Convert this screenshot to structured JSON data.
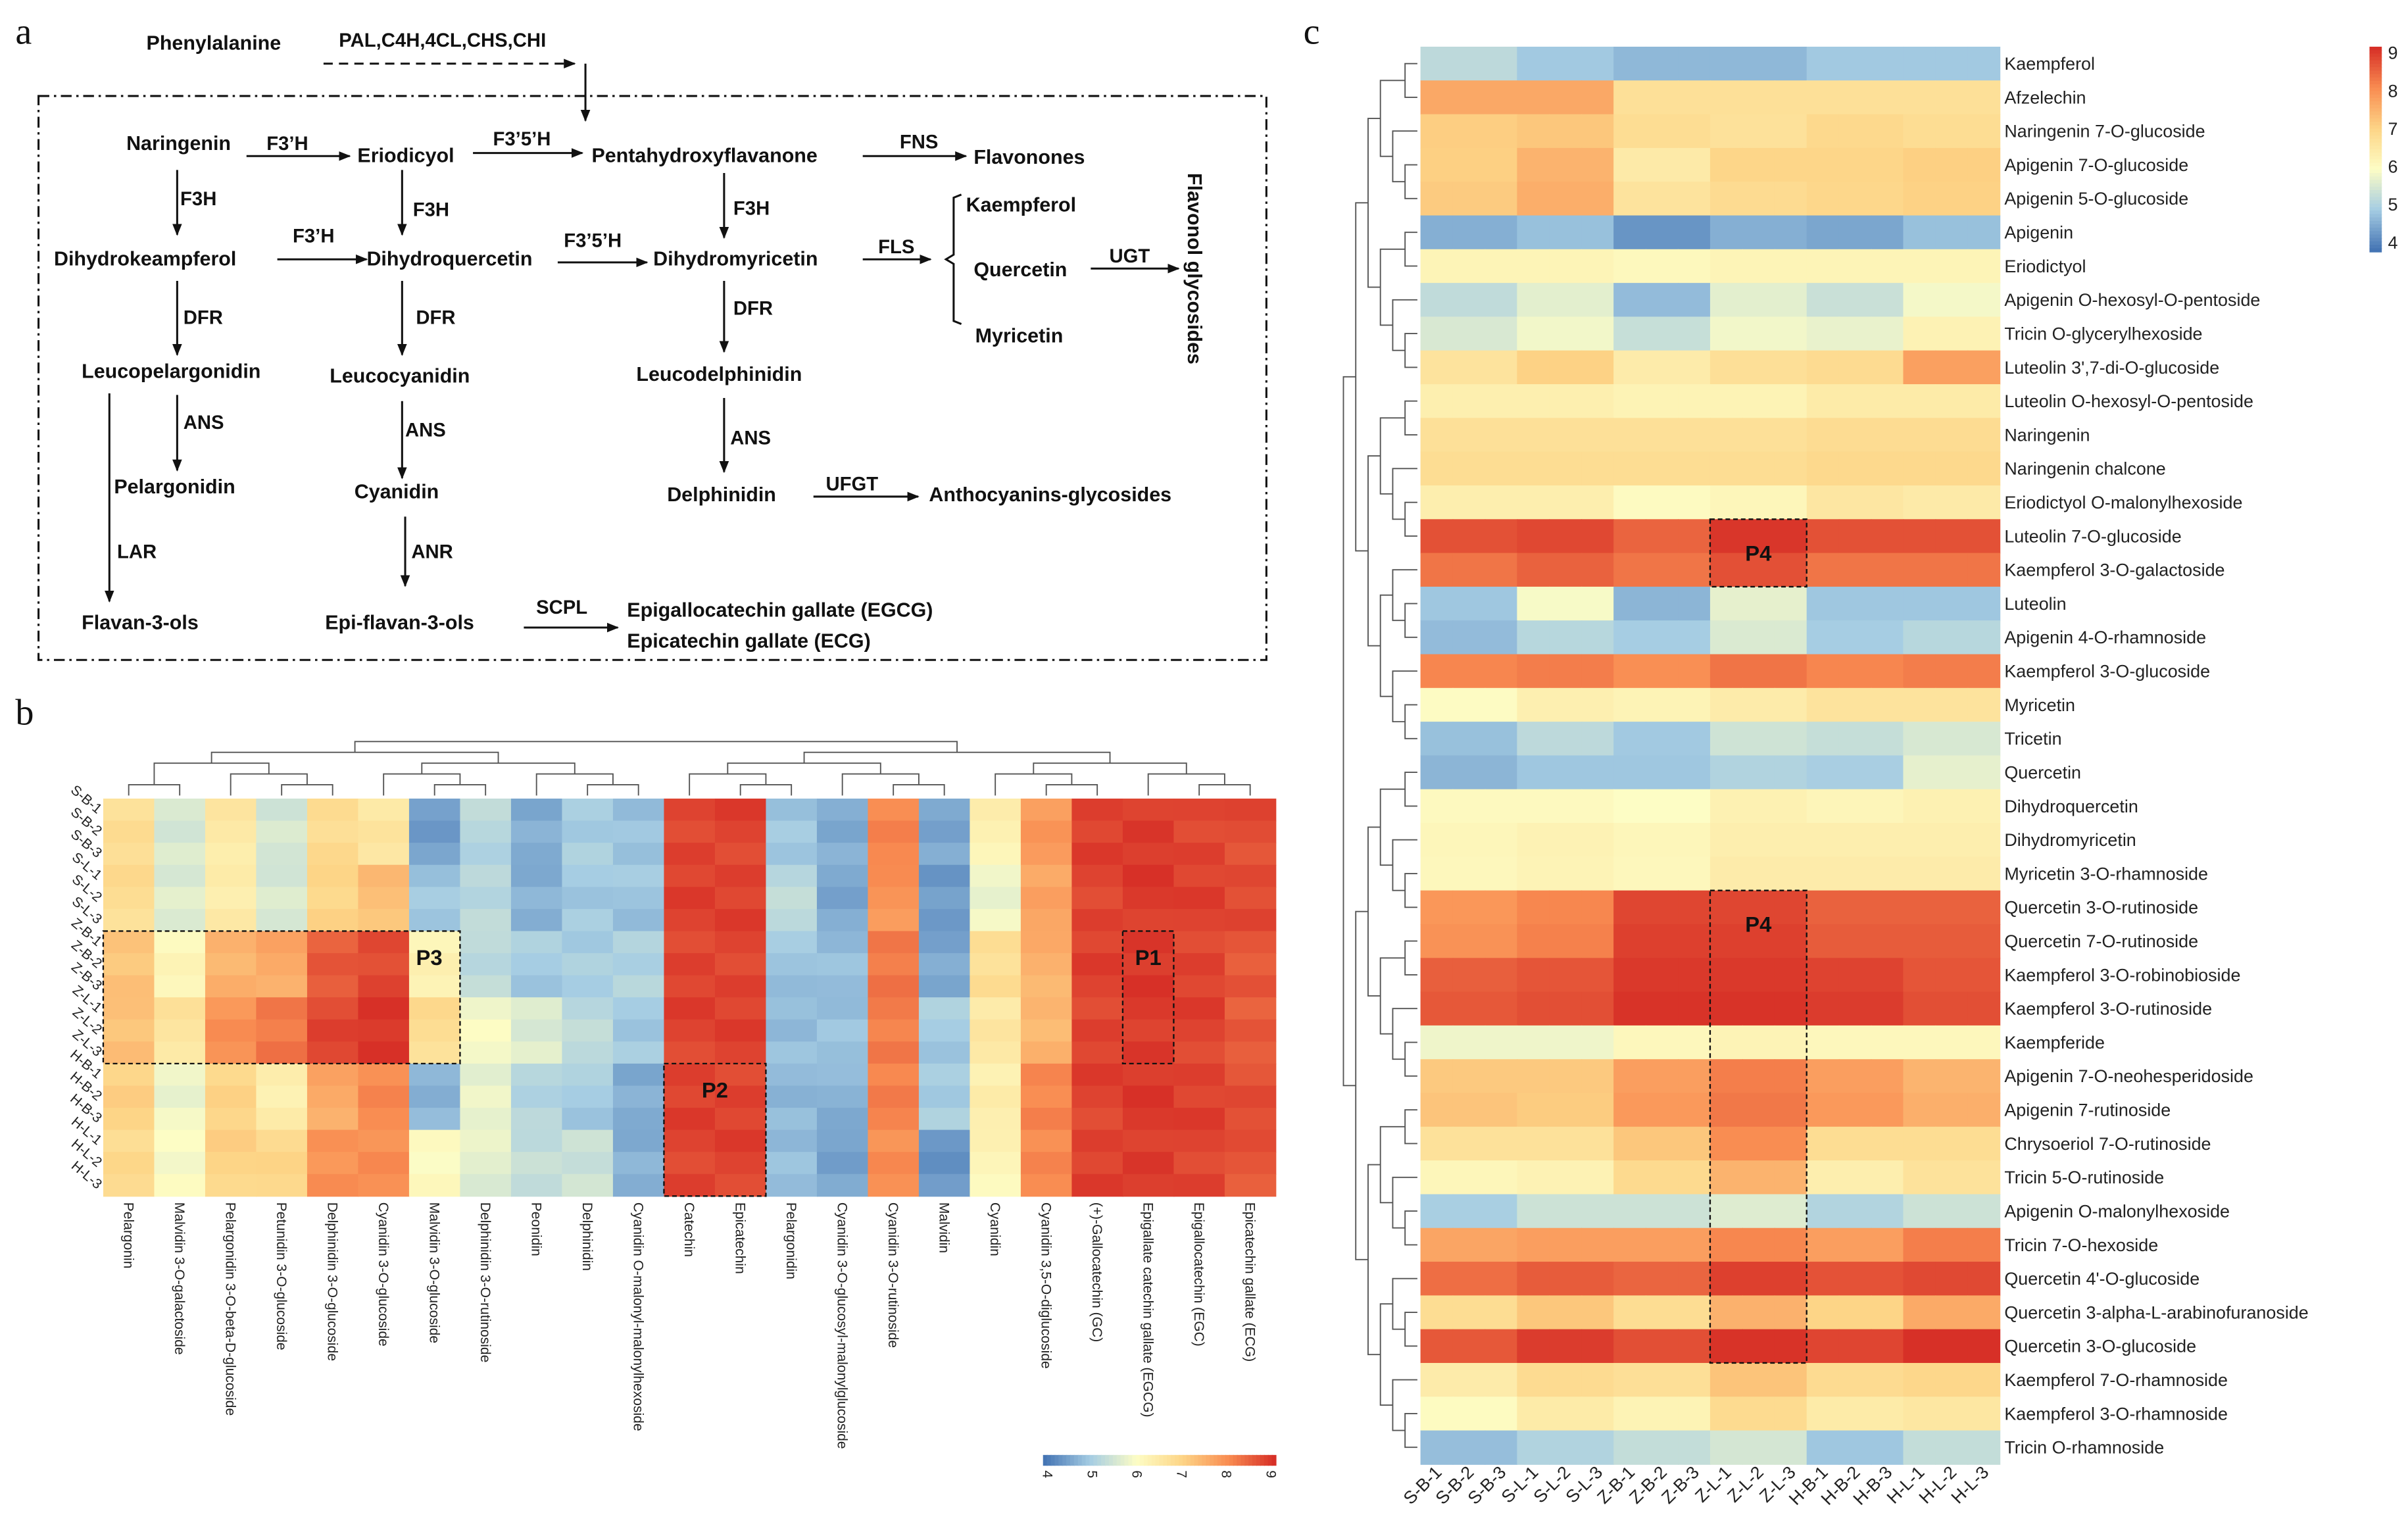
{
  "panels": {
    "a": "a",
    "b": "b",
    "c": "c"
  },
  "pathway": {
    "phenylalanine": "Phenylalanine",
    "naringenin": "Naringenin",
    "eriodicyol": "Eriodicyol",
    "pentahydroxyflavanone": "Pentahydroxyflavanone",
    "flavonones": "Flavonones",
    "dihydrokeampferol": "Dihydrokeampferol",
    "dihydroquercetin": "Dihydroquercetin",
    "dihydromyricetin": "Dihydromyricetin",
    "kaempferol": "Kaempferol",
    "quercetin": "Quercetin",
    "myricetin": "Myricetin",
    "flavonol_glycosides": "Flavonol glycosides",
    "leucopelargonidin": "Leucopelargonidin",
    "leucocyanidin": "Leucocyanidin",
    "leucodelphinidin": "Leucodelphinidin",
    "pelargonidin": "Pelargonidin",
    "cyanidin": "Cyanidin",
    "delphinidin": "Delphinidin",
    "anthocyanins_glycosides": "Anthocyanins-glycosides",
    "flavan_3_ols": "Flavan-3-ols",
    "epi_flavan_3_ols": "Epi-flavan-3-ols",
    "egcg": "Epigallocatechin gallate (EGCG)",
    "ecg": "Epicatechin gallate (ECG)",
    "enzymes": [
      "PAL,C4H,4CL,CHS,CHI",
      "F3’H",
      "F3’5’H",
      "FNS",
      "F3H",
      "F3’H",
      "F3H",
      "F3’5’H",
      "F3H",
      "FLS",
      "UGT",
      "DFR",
      "DFR",
      "DFR",
      "LAR",
      "ANS",
      "ANS",
      "ANS",
      "UFGT",
      "ANR",
      "SCPL"
    ]
  },
  "colors": {
    "low": "#4575b4",
    "mid": "#fdfdc5",
    "high": "#d73027"
  },
  "chart_data": [
    {
      "type": "heatmap",
      "panel": "b",
      "rows": [
        "S-B-1",
        "S-B-2",
        "S-B-3",
        "S-L-1",
        "S-L-2",
        "S-L-3",
        "Z-B-1",
        "Z-B-2",
        "Z-B-3",
        "Z-L-1",
        "Z-L-2",
        "Z-L-3",
        "H-B-1",
        "H-B-2",
        "H-B-3",
        "H-L-1",
        "H-L-2",
        "H-L-3"
      ],
      "row_groups": [
        "S-B",
        "S-L",
        "Z-B",
        "Z-L",
        "H-B",
        "H-L"
      ],
      "columns": [
        "Pelargonin",
        "Malvidin 3-O-galactoside",
        "Pelargonidin 3-O-beta-D-glucoside",
        "Petunidin 3-O-glucoside",
        "Delphinidin 3-O-glucoside",
        "Cyanidin 3-O-glucoside",
        "Malvidin 3-O-glucoside",
        "Delphinidin 3-O-rutinoside",
        "Peonidin",
        "Delphinidin",
        "Cyanidin O-malonyl-malonylhexoside",
        "Catechin",
        "Epicatechin",
        "Pelargonidin",
        "Cyanidin 3-O-glucosyl-malonylglucoside",
        "Cyanidin 3-O-rutinoside",
        "Malvidin",
        "Cyanidin",
        "Cyanidin 3,5-O-diglucoside",
        "(+)-Gallocatechin (GC)",
        "Epigallate catechin gallate (EGCG)",
        "Epigallocatechin (EGC)",
        "Epicatechin gallate (ECG)"
      ],
      "group_values": [
        [
          6.8,
          6.8,
          7.2,
          7.3,
          7.0,
          6.9
        ],
        [
          5.6,
          5.6,
          6.2,
          6.6,
          5.8,
          6.0
        ],
        [
          6.5,
          6.4,
          7.5,
          7.9,
          7.0,
          7.0
        ],
        [
          5.5,
          5.6,
          7.6,
          8.2,
          6.4,
          6.9
        ],
        [
          6.8,
          7.0,
          8.5,
          8.8,
          7.6,
          7.9
        ],
        [
          6.6,
          7.3,
          8.7,
          9.0,
          8.0,
          8.0
        ],
        [
          4.5,
          4.9,
          6.3,
          6.8,
          4.7,
          6.1
        ],
        [
          5.2,
          5.2,
          5.3,
          5.9,
          5.8,
          5.7
        ],
        [
          4.6,
          4.7,
          5.0,
          5.6,
          5.2,
          5.3
        ],
        [
          5.0,
          5.0,
          5.0,
          5.3,
          5.0,
          5.4
        ],
        [
          4.9,
          4.9,
          5.1,
          5.0,
          4.6,
          4.7
        ],
        [
          8.8,
          8.8,
          8.8,
          8.8,
          8.8,
          8.8
        ],
        [
          8.8,
          8.8,
          8.8,
          8.8,
          8.8,
          8.8
        ],
        [
          4.9,
          5.3,
          4.9,
          4.8,
          4.8,
          4.8
        ],
        [
          4.6,
          4.6,
          4.8,
          4.9,
          4.7,
          4.5
        ],
        [
          8.1,
          7.9,
          8.2,
          8.2,
          8.1,
          8.0
        ],
        [
          4.6,
          4.4,
          4.6,
          5.0,
          5.0,
          4.4
        ],
        [
          6.3,
          5.8,
          6.8,
          6.5,
          6.4,
          6.2
        ],
        [
          7.8,
          7.7,
          7.5,
          7.4,
          8.1,
          8.0
        ],
        [
          8.8,
          8.8,
          8.8,
          8.8,
          8.8,
          8.8
        ],
        [
          8.9,
          8.9,
          8.9,
          8.9,
          8.9,
          8.9
        ],
        [
          8.8,
          8.8,
          8.8,
          8.8,
          8.8,
          8.8
        ],
        [
          8.7,
          8.7,
          8.6,
          8.5,
          8.7,
          8.6
        ]
      ],
      "color_range": [
        4,
        9
      ],
      "colorbar_ticks": [
        "4",
        "5",
        "6",
        "7",
        "8",
        "9"
      ],
      "boxes": [
        {
          "label": "P1",
          "columns": [
            20,
            20
          ],
          "rows": [
            6,
            11
          ]
        },
        {
          "label": "P2",
          "columns": [
            11,
            12
          ],
          "rows": [
            12,
            17
          ]
        },
        {
          "label": "P3",
          "columns": [
            0,
            6
          ],
          "rows": [
            6,
            11
          ]
        }
      ],
      "dendrogram": "columns"
    },
    {
      "type": "heatmap",
      "panel": "c",
      "columns": [
        "S-B-1",
        "S-B-2",
        "S-B-3",
        "S-L-1",
        "S-L-2",
        "S-L-3",
        "Z-B-1",
        "Z-B-2",
        "Z-B-3",
        "Z-L-1",
        "Z-L-2",
        "Z-L-3",
        "H-B-1",
        "H-B-2",
        "H-B-3",
        "H-L-1",
        "H-L-2",
        "H-L-3"
      ],
      "column_groups": [
        "S-B",
        "S-L",
        "Z-B",
        "Z-L",
        "H-B",
        "H-L"
      ],
      "rows": [
        "Kaempferol",
        "Afzelechin",
        "Naringenin 7-O-glucoside",
        "Apigenin 7-O-glucoside",
        "Apigenin 5-O-glucoside",
        "Apigenin",
        "Eriodictyol",
        "Apigenin O-hexosyl-O-pentoside",
        "Tricin O-glycerylhexoside",
        "Luteolin 3',7-di-O-glucoside",
        "Luteolin O-hexosyl-O-pentoside",
        "Naringenin",
        "Naringenin chalcone",
        "Eriodictyol O-malonylhexoside",
        "Luteolin 7-O-glucoside",
        "Kaempferol 3-O-galactoside",
        "Luteolin",
        "Apigenin 4-O-rhamnoside",
        "Kaempferol 3-O-glucoside",
        "Myricetin",
        "Tricetin",
        "Quercetin",
        "Dihydroquercetin",
        "Dihydromyricetin",
        "Myricetin 3-O-rhamnoside",
        "Quercetin 3-O-rutinoside",
        "Quercetin 7-O-rutinoside",
        "Kaempferol 3-O-robinobioside",
        "Kaempferol 3-O-rutinoside",
        "Kaempferide",
        "Apigenin 7-O-neohesperidoside",
        "Apigenin 7-rutinoside",
        "Chrysoeriol 7-O-rutinoside",
        "Tricin 5-O-rutinoside",
        "Apigenin O-malonylhexoside",
        "Tricin 7-O-hexoside",
        "Quercetin 4'-O-glucoside",
        "Quercetin 3-alpha-L-arabinofuranoside",
        "Quercetin 3-O-glucoside",
        "Kaempferol 7-O-rhamnoside",
        "Kaempferol 3-O-rhamnoside",
        "Tricin O-rhamnoside"
      ],
      "group_values": [
        [
          5.4,
          5.1,
          4.9,
          4.9,
          5.1,
          5.1
        ],
        [
          7.7,
          7.7,
          6.8,
          6.8,
          6.8,
          6.8
        ],
        [
          7.1,
          7.2,
          6.8,
          6.7,
          6.9,
          6.8
        ],
        [
          7.0,
          7.4,
          6.4,
          6.9,
          6.9,
          7.0
        ],
        [
          7.0,
          7.4,
          6.5,
          6.7,
          6.8,
          6.9
        ],
        [
          4.8,
          5.0,
          4.5,
          4.8,
          4.7,
          5.0
        ],
        [
          6.3,
          6.3,
          6.2,
          6.3,
          6.3,
          6.3
        ],
        [
          5.3,
          5.7,
          4.8,
          5.7,
          5.4,
          5.9
        ],
        [
          5.5,
          5.8,
          5.3,
          5.8,
          5.7,
          6.2
        ],
        [
          6.5,
          6.9,
          6.3,
          6.6,
          6.7,
          7.6
        ],
        [
          6.5,
          6.5,
          6.4,
          6.4,
          6.6,
          6.6
        ],
        [
          6.8,
          6.8,
          6.8,
          6.8,
          6.9,
          6.9
        ],
        [
          6.8,
          6.8,
          6.8,
          6.8,
          6.9,
          6.9
        ],
        [
          6.3,
          6.3,
          6.0,
          6.1,
          6.5,
          6.4
        ],
        [
          8.5,
          8.6,
          8.3,
          8.8,
          8.5,
          8.5
        ],
        [
          8.4,
          8.6,
          8.4,
          8.8,
          8.4,
          8.4
        ],
        [
          5.0,
          6.0,
          4.8,
          5.8,
          5.0,
          5.0
        ],
        [
          4.8,
          5.2,
          5.0,
          5.6,
          5.0,
          5.2
        ],
        [
          8.0,
          8.1,
          7.9,
          8.2,
          8.0,
          8.1
        ],
        [
          5.9,
          6.2,
          6.1,
          6.3,
          6.5,
          6.5
        ],
        [
          5.0,
          5.4,
          5.1,
          5.6,
          5.5,
          5.7
        ],
        [
          4.8,
          5.0,
          5.0,
          5.2,
          5.1,
          5.8
        ],
        [
          6.1,
          6.1,
          6.0,
          6.3,
          6.2,
          6.3
        ],
        [
          6.1,
          6.2,
          6.1,
          6.3,
          6.3,
          6.3
        ],
        [
          6.0,
          6.1,
          6.0,
          6.3,
          6.3,
          6.3
        ],
        [
          8.0,
          8.2,
          8.9,
          8.9,
          8.6,
          8.6
        ],
        [
          8.0,
          8.2,
          8.9,
          8.9,
          8.6,
          8.6
        ],
        [
          8.5,
          8.6,
          8.9,
          8.9,
          8.8,
          8.6
        ],
        [
          8.5,
          8.6,
          8.9,
          8.9,
          8.8,
          8.6
        ],
        [
          5.7,
          5.7,
          6.0,
          6.1,
          6.0,
          6.0
        ],
        [
          7.3,
          7.3,
          7.9,
          8.3,
          7.9,
          7.6
        ],
        [
          7.3,
          7.2,
          7.9,
          8.3,
          7.9,
          7.6
        ],
        [
          6.7,
          6.7,
          7.2,
          8.0,
          6.8,
          6.8
        ],
        [
          6.1,
          6.2,
          6.8,
          7.4,
          6.3,
          6.6
        ],
        [
          4.9,
          5.3,
          5.3,
          5.5,
          5.0,
          5.3
        ],
        [
          7.8,
          7.9,
          7.9,
          8.2,
          7.9,
          8.3
        ],
        [
          8.4,
          8.6,
          8.5,
          8.9,
          8.7,
          8.8
        ],
        [
          6.8,
          7.2,
          6.8,
          7.5,
          7.0,
          7.6
        ],
        [
          8.5,
          8.8,
          8.6,
          8.9,
          8.7,
          9.0
        ],
        [
          6.3,
          6.7,
          6.6,
          7.1,
          6.7,
          6.8
        ],
        [
          6.2,
          6.6,
          6.4,
          7.0,
          6.6,
          6.7
        ],
        [
          4.9,
          5.2,
          5.4,
          5.6,
          5.0,
          5.4
        ]
      ],
      "color_range": [
        4,
        9
      ],
      "colorbar_ticks": [
        "9",
        "8",
        "7",
        "6",
        "5",
        "4"
      ],
      "boxes": [
        {
          "label": "P4",
          "columns": [
            9,
            11
          ],
          "rows": [
            14,
            15
          ]
        },
        {
          "label": "P4",
          "columns": [
            9,
            11
          ],
          "rows": [
            25,
            38
          ]
        }
      ],
      "dendrogram": "rows"
    }
  ]
}
